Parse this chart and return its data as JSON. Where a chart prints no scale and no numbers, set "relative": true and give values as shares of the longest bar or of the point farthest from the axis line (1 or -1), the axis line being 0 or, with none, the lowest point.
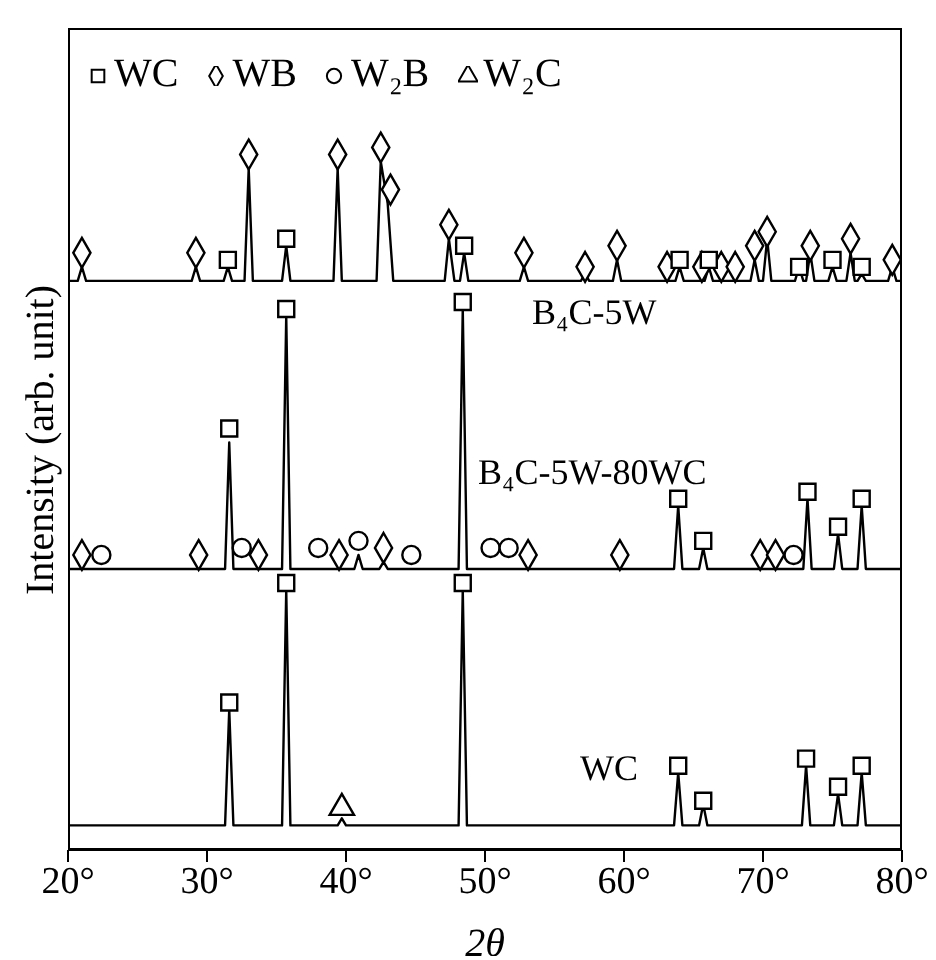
{
  "chart_data": {
    "type": "line",
    "relative": true,
    "xlabel": "2θ",
    "ylabel": "Intensity (arb. unit)",
    "xlim": [
      20,
      80
    ],
    "xticks": [
      {
        "value": 20,
        "label": "20°"
      },
      {
        "value": 30,
        "label": "30°"
      },
      {
        "value": 40,
        "label": "40°"
      },
      {
        "value": 50,
        "label": "50°"
      },
      {
        "value": 60,
        "label": "60°"
      },
      {
        "value": 70,
        "label": "70°"
      },
      {
        "value": 80,
        "label": "80°"
      }
    ],
    "legend": "top left",
    "grid": false,
    "series": [
      {
        "name": "B₄C-5W",
        "color": "#000000",
        "x": [
          20,
          20.7,
          21.0,
          21.3,
          28.9,
          29.2,
          29.5,
          31.2,
          31.5,
          31.8,
          32.7,
          33.0,
          33.3,
          35.4,
          35.7,
          36.0,
          39.1,
          39.4,
          39.7,
          42.2,
          42.5,
          43.0,
          43.4,
          47.1,
          47.4,
          47.8,
          48.2,
          48.5,
          48.8,
          52.5,
          52.8,
          53.1,
          56.9,
          57.2,
          57.5,
          59.2,
          59.5,
          59.8,
          63.7,
          64.0,
          64.3,
          65.8,
          66.1,
          66.4,
          69.1,
          69.4,
          69.7,
          70.0,
          70.3,
          70.6,
          72.3,
          72.6,
          72.9,
          73.1,
          73.4,
          73.7,
          74.7,
          75.0,
          75.3,
          76.0,
          76.3,
          76.6,
          76.8,
          77.1,
          77.4,
          79.0,
          79.3,
          79.6,
          80
        ],
        "values": [
          0.81,
          0.81,
          0.83,
          0.81,
          0.81,
          0.83,
          0.81,
          0.81,
          0.83,
          0.81,
          0.81,
          0.97,
          0.81,
          0.81,
          0.86,
          0.81,
          0.81,
          0.97,
          0.81,
          0.81,
          0.98,
          0.92,
          0.81,
          0.81,
          0.87,
          0.81,
          0.81,
          0.85,
          0.81,
          0.81,
          0.83,
          0.81,
          0.81,
          0.82,
          0.81,
          0.81,
          0.84,
          0.81,
          0.81,
          0.83,
          0.81,
          0.81,
          0.83,
          0.81,
          0.81,
          0.84,
          0.81,
          0.81,
          0.87,
          0.81,
          0.81,
          0.83,
          0.81,
          0.81,
          0.85,
          0.81,
          0.81,
          0.83,
          0.81,
          0.81,
          0.85,
          0.81,
          0.81,
          0.82,
          0.81,
          0.81,
          0.83,
          0.81,
          0.81
        ]
      },
      {
        "name": "B₄C-5W-80WC",
        "color": "#000000",
        "x": [
          20,
          31.3,
          31.6,
          31.9,
          35.4,
          35.7,
          36.0,
          40.6,
          40.9,
          41.2,
          42.4,
          42.7,
          43.0,
          48.1,
          48.4,
          48.7,
          63.6,
          63.9,
          64.2,
          65.4,
          65.7,
          66.0,
          72.9,
          73.2,
          73.5,
          75.1,
          75.4,
          75.7,
          76.8,
          77.1,
          77.4,
          80
        ],
        "values": [
          0.4,
          0.4,
          0.58,
          0.4,
          0.4,
          0.76,
          0.4,
          0.4,
          0.42,
          0.4,
          0.4,
          0.41,
          0.4,
          0.4,
          0.77,
          0.4,
          0.4,
          0.49,
          0.4,
          0.4,
          0.43,
          0.4,
          0.4,
          0.5,
          0.4,
          0.4,
          0.45,
          0.4,
          0.4,
          0.49,
          0.4,
          0.4
        ]
      },
      {
        "name": "WC",
        "color": "#000000",
        "x": [
          20,
          31.3,
          31.6,
          31.9,
          35.4,
          35.7,
          36.0,
          39.4,
          39.7,
          40.0,
          48.1,
          48.4,
          48.7,
          63.6,
          63.9,
          64.2,
          65.4,
          65.7,
          66.0,
          72.8,
          73.1,
          73.4,
          75.1,
          75.4,
          75.7,
          76.8,
          77.1,
          77.4,
          80
        ],
        "values": [
          0.035,
          0.035,
          0.2,
          0.035,
          0.035,
          0.37,
          0.035,
          0.035,
          0.045,
          0.035,
          0.035,
          0.37,
          0.035,
          0.035,
          0.11,
          0.035,
          0.035,
          0.065,
          0.035,
          0.035,
          0.12,
          0.035,
          0.035,
          0.08,
          0.035,
          0.035,
          0.11,
          0.035,
          0.035
        ]
      },
      {
        "name": "WC",
        "type": "scatter",
        "marker": "square",
        "color": "#000000",
        "x": [
          31.5,
          35.7,
          48.5,
          64.0,
          66.1,
          72.6,
          75.0,
          77.1,
          31.6,
          35.7,
          48.4,
          63.9,
          65.7,
          73.2,
          75.4,
          77.1,
          31.6,
          35.7,
          48.4,
          63.9,
          65.7,
          73.1,
          75.4,
          77.1
        ],
        "values": [
          0.84,
          0.87,
          0.86,
          0.84,
          0.84,
          0.83,
          0.84,
          0.83,
          0.6,
          0.77,
          0.78,
          0.5,
          0.44,
          0.51,
          0.46,
          0.5,
          0.21,
          0.38,
          0.38,
          0.12,
          0.07,
          0.13,
          0.09,
          0.12
        ]
      },
      {
        "name": "WB",
        "type": "scatter",
        "marker": "diamond",
        "color": "#000000",
        "x": [
          21.0,
          29.2,
          33.0,
          39.4,
          42.5,
          43.2,
          47.4,
          52.8,
          57.2,
          59.5,
          63.1,
          65.6,
          67.0,
          68.0,
          69.4,
          70.3,
          73.4,
          76.3,
          79.3,
          21.0,
          29.4,
          33.7,
          39.5,
          42.7,
          53.1,
          59.7,
          69.8,
          70.9
        ],
        "values": [
          0.85,
          0.85,
          0.99,
          0.99,
          1.0,
          0.94,
          0.89,
          0.85,
          0.83,
          0.86,
          0.83,
          0.83,
          0.83,
          0.83,
          0.86,
          0.88,
          0.86,
          0.87,
          0.84,
          0.42,
          0.42,
          0.42,
          0.42,
          0.43,
          0.42,
          0.42,
          0.42,
          0.42
        ]
      },
      {
        "name": "W₂B",
        "type": "scatter",
        "marker": "circle",
        "color": "#000000",
        "x": [
          22.4,
          32.5,
          38.0,
          40.9,
          44.7,
          50.4,
          51.7,
          72.2
        ],
        "values": [
          0.42,
          0.43,
          0.43,
          0.44,
          0.42,
          0.43,
          0.43,
          0.42
        ]
      },
      {
        "name": "W₂C",
        "type": "scatter",
        "marker": "triangle",
        "color": "#000000",
        "x": [
          39.7
        ],
        "values": [
          0.06
        ]
      }
    ]
  }
}
